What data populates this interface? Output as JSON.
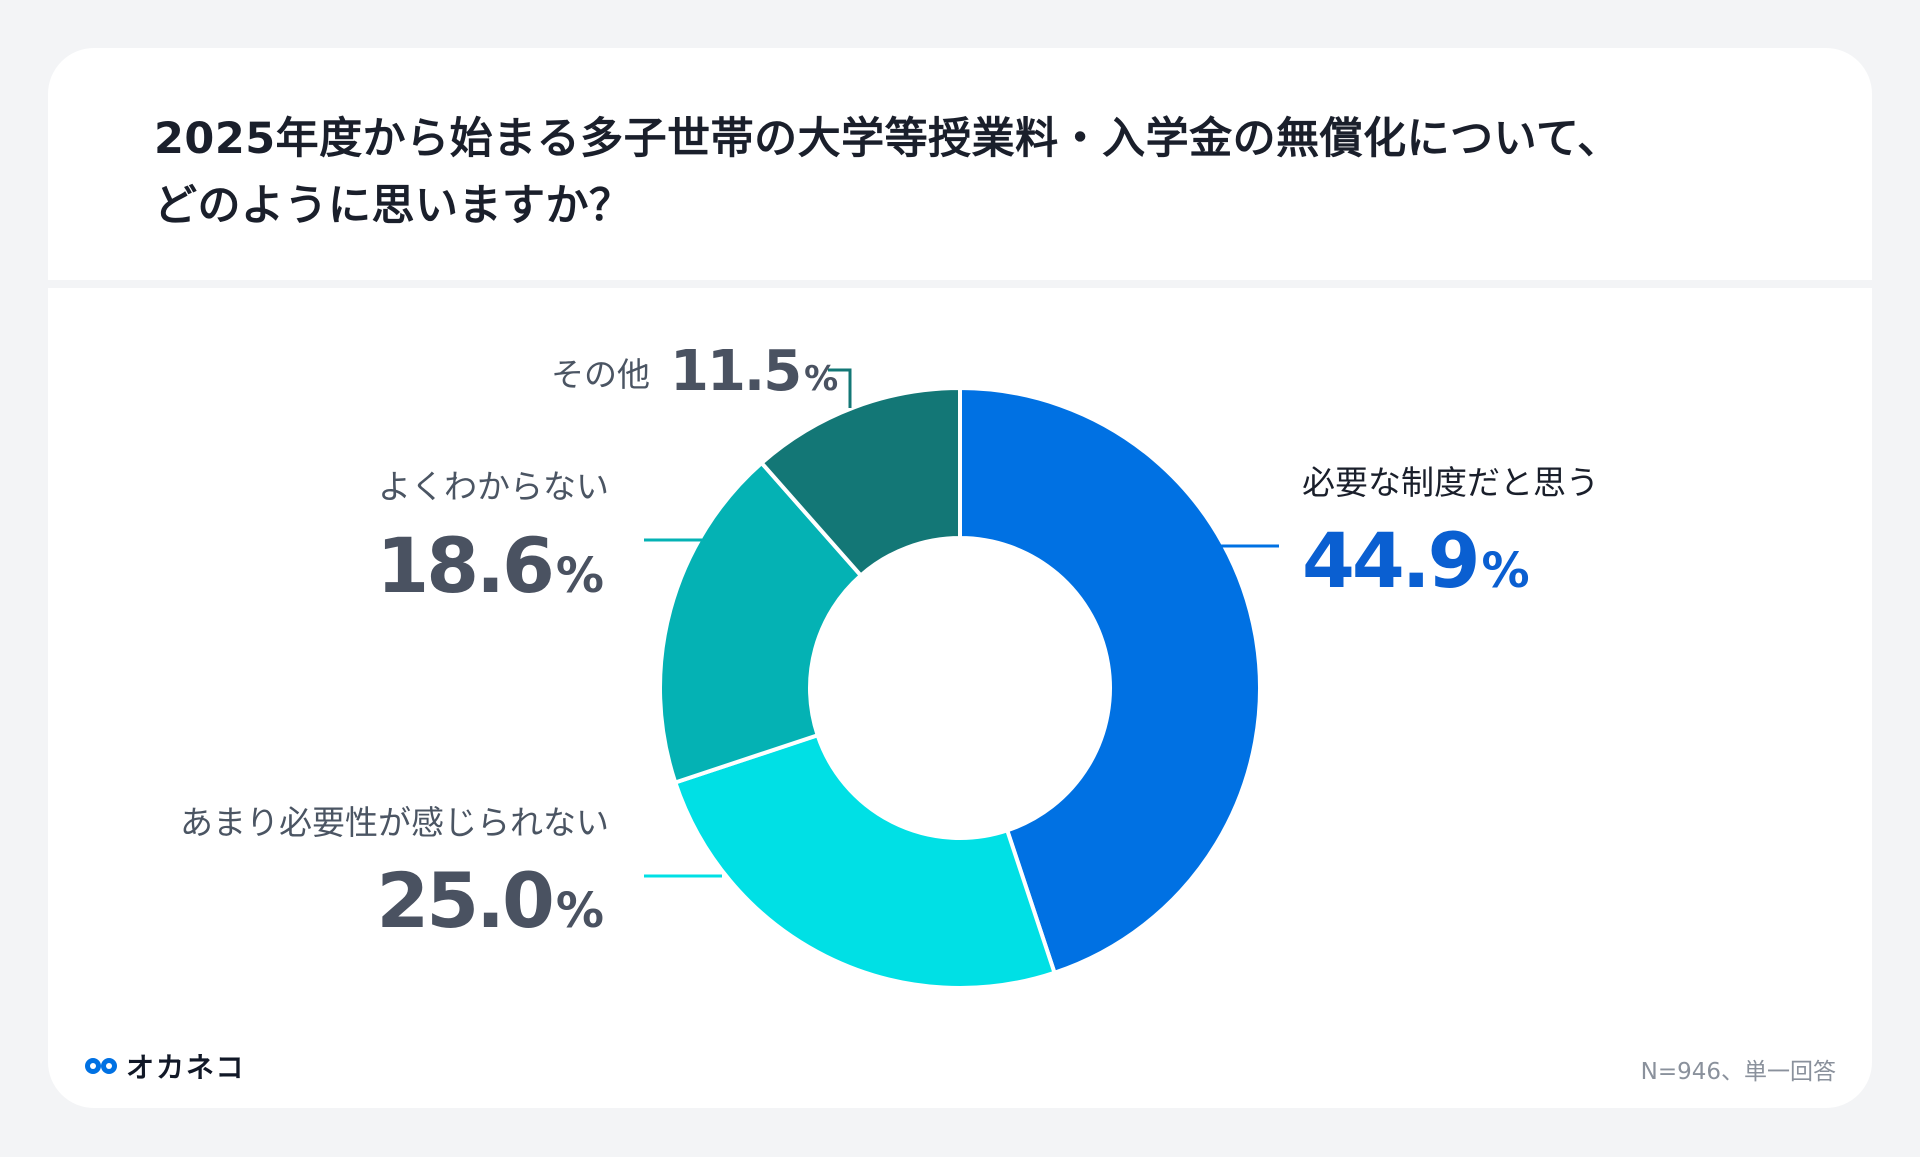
{
  "title_line1": "2025年度から始まる多子世帯の大学等授業料・入学金の無償化について、",
  "title_line2": "どのように思いますか？",
  "chart_data": {
    "type": "pie",
    "donut": true,
    "categories": [
      "必要な制度だと思う",
      "あまり必要性が感じられない",
      "よくわからない",
      "その他"
    ],
    "values": [
      44.9,
      25.0,
      18.6,
      11.5
    ],
    "value_labels": [
      "44.9",
      "25.0",
      "18.6",
      "11.5"
    ],
    "unit": "%",
    "colors": [
      "#0071e3",
      "#00e0e5",
      "#04b2b4",
      "#137776"
    ]
  },
  "note": "N=946、単一回答",
  "logo": {
    "text": "オカネコ",
    "icon": "okaneko-logo-icon",
    "color": "#0071e3"
  }
}
